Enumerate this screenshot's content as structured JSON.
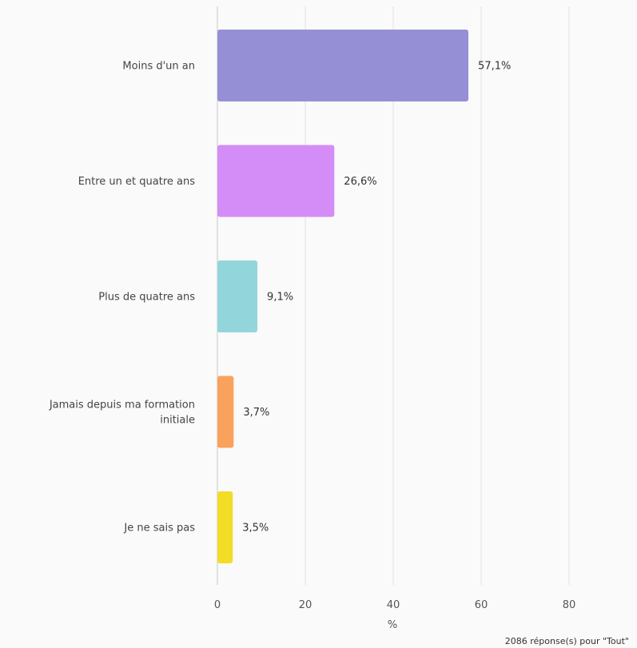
{
  "chart_data": {
    "type": "bar",
    "orientation": "horizontal",
    "categories": [
      "Moins d'un an",
      "Entre un et quatre ans",
      "Plus de quatre ans",
      "Jamais depuis ma formation initiale",
      "Je ne sais pas"
    ],
    "category_lines": [
      [
        "Moins d'un an"
      ],
      [
        "Entre un et quatre ans"
      ],
      [
        "Plus de quatre ans"
      ],
      [
        "Jamais depuis ma formation",
        "initiale"
      ],
      [
        "Je ne sais pas"
      ]
    ],
    "values": [
      57.1,
      26.6,
      9.1,
      3.7,
      3.5
    ],
    "value_labels": [
      "57,1%",
      "26,6%",
      "9,1%",
      "3,7%",
      "3,5%"
    ],
    "colors": [
      "#9590d6",
      "#d48cf7",
      "#92d6dc",
      "#f9a25e",
      "#f2dc26"
    ],
    "xticks": [
      "0",
      "20",
      "40",
      "60",
      "80"
    ],
    "xlim": [
      0,
      90
    ],
    "xlabel": "%",
    "grid": true,
    "legend": "none"
  },
  "footnote": "2086 réponse(s) pour \"Tout\""
}
